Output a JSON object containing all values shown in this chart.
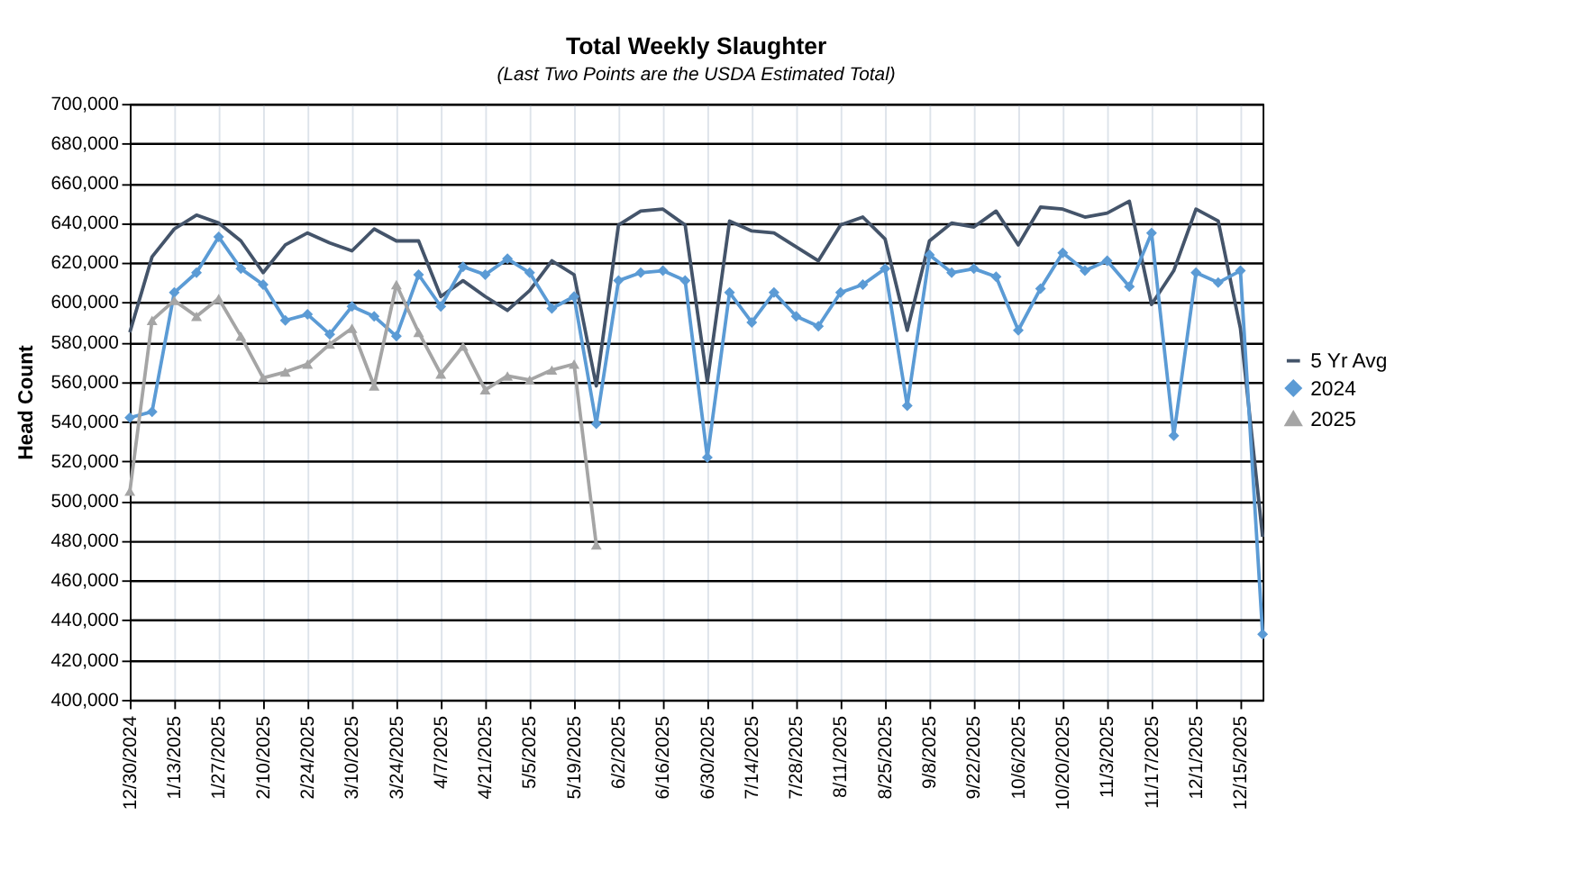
{
  "chart_data": {
    "type": "line",
    "title": "Total Weekly Slaughter",
    "subtitle": "(Last Two Points are the USDA Estimated Total)",
    "ylabel": "Head Count",
    "categories": [
      "12/30/2024",
      null,
      "1/13/2025",
      null,
      "1/27/2025",
      null,
      "2/10/2025",
      null,
      "2/24/2025",
      null,
      "3/10/2025",
      null,
      "3/24/2025",
      null,
      "4/7/2025",
      null,
      "4/21/2025",
      null,
      "5/5/2025",
      null,
      "5/19/2025",
      null,
      "6/2/2025",
      null,
      "6/16/2025",
      null,
      "6/30/2025",
      null,
      "7/14/2025",
      null,
      "7/28/2025",
      null,
      "8/11/2025",
      null,
      "8/25/2025",
      null,
      "9/8/2025",
      null,
      "9/22/2025",
      null,
      "10/6/2025",
      null,
      "10/20/2025",
      null,
      "11/3/2025",
      null,
      "11/17/2025",
      null,
      "12/1/2025",
      null,
      "12/15/2025",
      null
    ],
    "series": [
      {
        "name": "5 Yr Avg",
        "color": "#44546a",
        "marker": "none",
        "values": [
          585000,
          623000,
          637000,
          644000,
          640000,
          631000,
          615000,
          629000,
          635000,
          630000,
          626000,
          637000,
          631000,
          631000,
          603000,
          611000,
          603000,
          596000,
          606000,
          621000,
          614000,
          558000,
          639000,
          646000,
          647000,
          639000,
          560000,
          641000,
          636000,
          635000,
          628000,
          621000,
          639000,
          643000,
          632000,
          586000,
          631000,
          640000,
          638000,
          646000,
          629000,
          648000,
          647000,
          643000,
          645000,
          651000,
          599000,
          616000,
          647000,
          641000,
          587000,
          482000
        ]
      },
      {
        "name": "2024",
        "color": "#5b9bd5",
        "marker": "diamond",
        "values": [
          542000,
          545000,
          605000,
          615000,
          633000,
          617000,
          609000,
          591000,
          594000,
          584000,
          598000,
          593000,
          583000,
          614000,
          598000,
          618000,
          614000,
          622000,
          615000,
          597000,
          603000,
          539000,
          611000,
          615000,
          616000,
          611000,
          522000,
          605000,
          590000,
          605000,
          593000,
          588000,
          605000,
          609000,
          617000,
          548000,
          624000,
          615000,
          617000,
          613000,
          586000,
          607000,
          625000,
          616000,
          621000,
          608000,
          635000,
          533000,
          615000,
          610000,
          616000,
          433000
        ]
      },
      {
        "name": "2025",
        "color": "#a5a5a5",
        "marker": "triangle",
        "values": [
          505000,
          591000,
          601000,
          593000,
          602000,
          583000,
          562000,
          565000,
          569000,
          579000,
          587000,
          558000,
          609000,
          585000,
          564000,
          578000,
          556000,
          563000,
          561000,
          566000,
          569000,
          478000,
          null,
          null,
          null,
          null,
          null,
          null,
          null,
          null,
          null,
          null,
          null,
          null,
          null,
          null,
          null,
          null,
          null,
          null,
          null,
          null,
          null,
          null,
          null,
          null,
          null,
          null,
          null,
          null,
          null,
          null
        ]
      }
    ],
    "ylim": [
      400000,
      700000
    ],
    "yticks": [
      {
        "value": 400000,
        "label": "400,000"
      },
      {
        "value": 420000,
        "label": "420,000"
      },
      {
        "value": 440000,
        "label": "440,000"
      },
      {
        "value": 460000,
        "label": "460,000"
      },
      {
        "value": 480000,
        "label": "480,000"
      },
      {
        "value": 500000,
        "label": "500,000"
      },
      {
        "value": 520000,
        "label": "520,000"
      },
      {
        "value": 540000,
        "label": "540,000"
      },
      {
        "value": 560000,
        "label": "560,000"
      },
      {
        "value": 580000,
        "label": "580,000"
      },
      {
        "value": 600000,
        "label": "600,000"
      },
      {
        "value": 620000,
        "label": "620,000"
      },
      {
        "value": 640000,
        "label": "640,000"
      },
      {
        "value": 660000,
        "label": "660,000"
      },
      {
        "value": 680000,
        "label": "680,000"
      },
      {
        "value": 700000,
        "label": "700,000"
      }
    ],
    "grid": true,
    "legend": "right",
    "line_style": "solid"
  }
}
